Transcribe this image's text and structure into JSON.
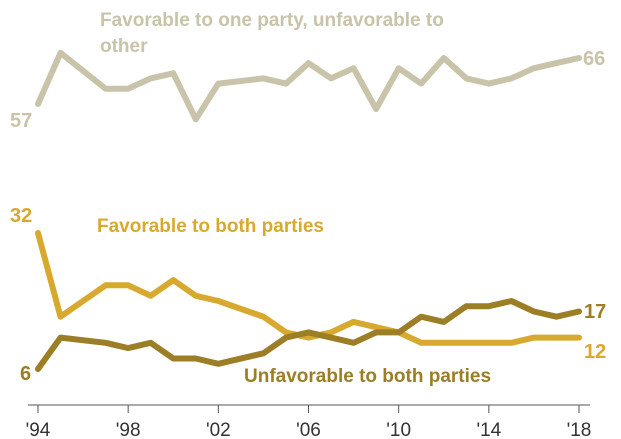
{
  "chart_data": {
    "type": "line",
    "x": [
      1994,
      1995,
      1997,
      1998,
      1999,
      2000,
      2001,
      2002,
      2004,
      2005,
      2006,
      2007,
      2008,
      2009,
      2010,
      2011,
      2012,
      2013,
      2014,
      2015,
      2016,
      2017,
      2018
    ],
    "xticks": [
      1994,
      1998,
      2002,
      2006,
      2010,
      2014,
      2018
    ],
    "xtick_labels": [
      "'94",
      "'98",
      "'02",
      "'06",
      "'10",
      "'14",
      "'18"
    ],
    "series": [
      {
        "name": "Favorable to one party, unfavorable to other",
        "color": "#c8c3a9",
        "values": [
          57,
          67,
          60,
          60,
          62,
          63,
          54,
          61,
          62,
          61,
          65,
          62,
          64,
          56,
          64,
          61,
          66,
          62,
          61,
          62,
          64,
          65,
          66
        ],
        "start_label": "57",
        "end_label": "66"
      },
      {
        "name": "Favorable to both parties",
        "color": "#d8a92f",
        "values": [
          32,
          16,
          22,
          22,
          20,
          23,
          20,
          19,
          16,
          13,
          12,
          13,
          15,
          14,
          13,
          11,
          11,
          11,
          11,
          11,
          12,
          12,
          12
        ],
        "start_label": "32",
        "end_label": "12"
      },
      {
        "name": "Unfavorable to both parties",
        "color": "#9b7e26",
        "values": [
          6,
          12,
          11,
          10,
          11,
          8,
          8,
          7,
          9,
          12,
          13,
          12,
          11,
          13,
          13,
          16,
          15,
          18,
          18,
          19,
          17,
          16,
          17
        ],
        "start_label": "6",
        "end_label": "17"
      }
    ],
    "grid": false
  }
}
